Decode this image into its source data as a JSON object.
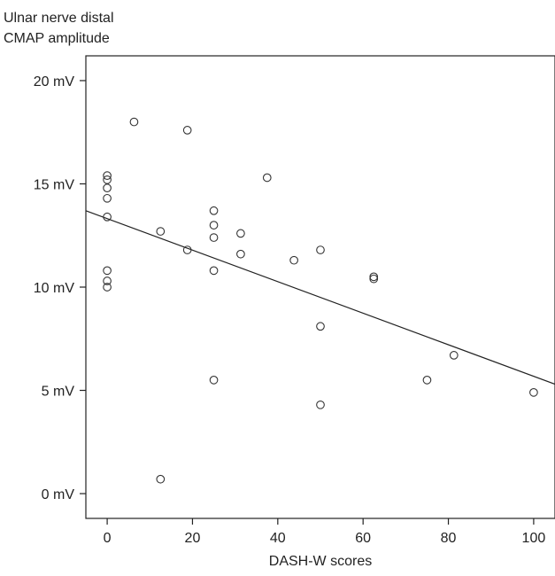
{
  "chart_data": {
    "type": "scatter",
    "ylabel_lines": [
      "Ulnar nerve distal",
      "CMAP amplitude"
    ],
    "xlabel": "DASH-W scores",
    "xlim": [
      -5,
      105
    ],
    "ylim": [
      -1.2,
      21.2
    ],
    "x_ticks": [
      0,
      20,
      40,
      60,
      80,
      100
    ],
    "x_tick_labels": [
      "0",
      "20",
      "40",
      "60",
      "80",
      "100"
    ],
    "y_ticks": [
      0,
      5,
      10,
      15,
      20
    ],
    "y_tick_labels": [
      "0 mV",
      "5 mV",
      "10 mV",
      "15 mV",
      "20 mV"
    ],
    "grid": false,
    "points": [
      {
        "x": 0,
        "y": 15.4
      },
      {
        "x": 0,
        "y": 15.2
      },
      {
        "x": 0,
        "y": 14.8
      },
      {
        "x": 0,
        "y": 14.3
      },
      {
        "x": 0,
        "y": 13.4
      },
      {
        "x": 0,
        "y": 10.8
      },
      {
        "x": 0,
        "y": 10.3
      },
      {
        "x": 0,
        "y": 10.0
      },
      {
        "x": 6.3,
        "y": 18.0
      },
      {
        "x": 12.5,
        "y": 12.7
      },
      {
        "x": 12.5,
        "y": 0.7
      },
      {
        "x": 18.8,
        "y": 17.6
      },
      {
        "x": 18.8,
        "y": 11.8
      },
      {
        "x": 25,
        "y": 13.7
      },
      {
        "x": 25,
        "y": 13.0
      },
      {
        "x": 25,
        "y": 12.4
      },
      {
        "x": 25,
        "y": 10.8
      },
      {
        "x": 25,
        "y": 5.5
      },
      {
        "x": 31.3,
        "y": 12.6
      },
      {
        "x": 31.3,
        "y": 11.6
      },
      {
        "x": 37.5,
        "y": 15.3
      },
      {
        "x": 43.8,
        "y": 11.3
      },
      {
        "x": 50,
        "y": 11.8
      },
      {
        "x": 50,
        "y": 8.1
      },
      {
        "x": 50,
        "y": 4.3
      },
      {
        "x": 62.5,
        "y": 10.5
      },
      {
        "x": 62.5,
        "y": 10.4
      },
      {
        "x": 75,
        "y": 5.5
      },
      {
        "x": 81.3,
        "y": 6.7
      },
      {
        "x": 100,
        "y": 4.9
      }
    ],
    "trendline": {
      "x": [
        -5,
        105
      ],
      "y": [
        13.7,
        5.3
      ]
    }
  }
}
